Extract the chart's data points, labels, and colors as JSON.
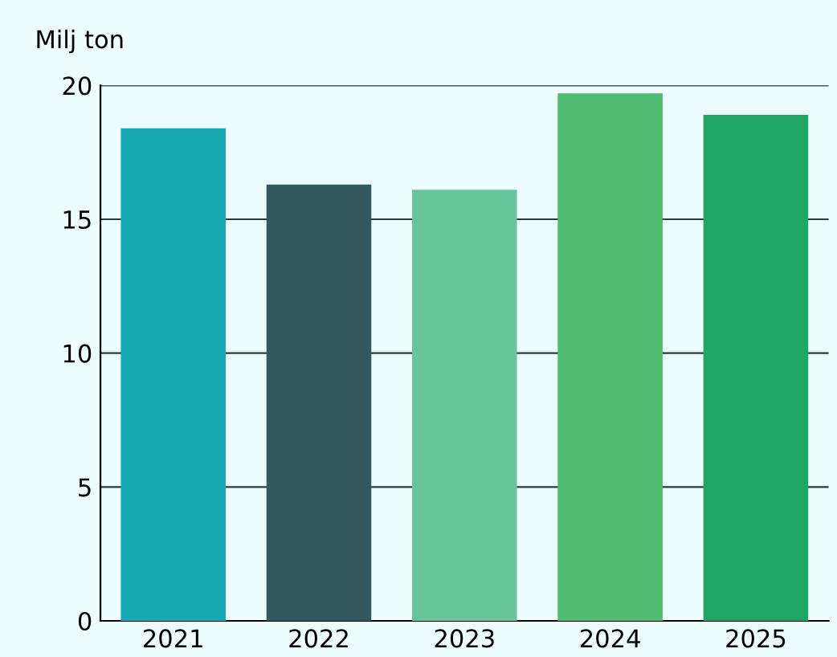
{
  "chart_data": {
    "type": "bar",
    "ylabel": "Milj ton",
    "categories": [
      "2021",
      "2022",
      "2023",
      "2024",
      "2025"
    ],
    "values": [
      18.4,
      16.3,
      16.1,
      19.7,
      18.9
    ],
    "colors": [
      "#17aab2",
      "#33585f",
      "#68c499",
      "#52bb72",
      "#1fa566"
    ],
    "ylim": [
      0,
      20
    ],
    "yticks": [
      0,
      5,
      10,
      15,
      20
    ],
    "grid": "y"
  }
}
